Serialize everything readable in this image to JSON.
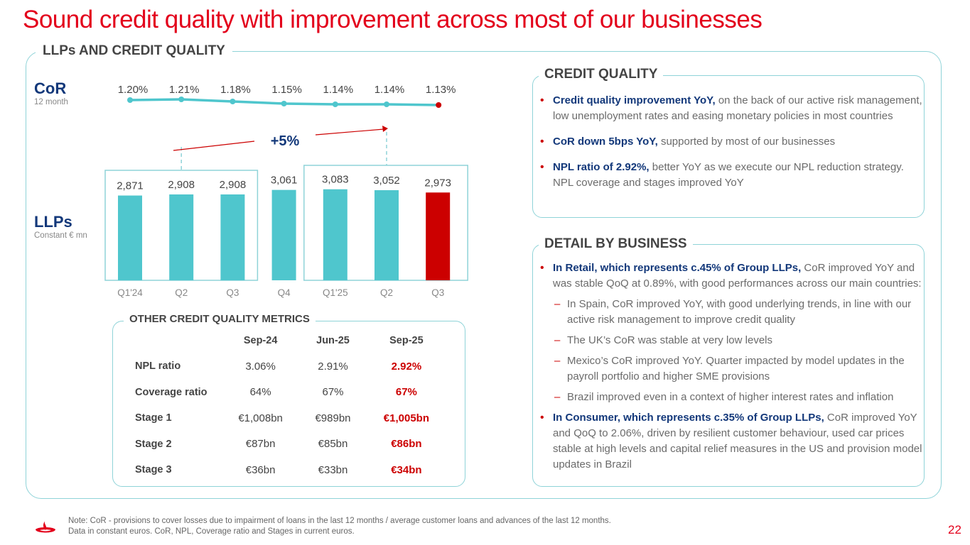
{
  "title": "Sound credit quality with improvement across most of our businesses",
  "main_section": "LLPs AND CREDIT QUALITY",
  "cor": {
    "label": "CoR",
    "sublabel": "12 month"
  },
  "llps": {
    "label": "LLPs",
    "sublabel": "Constant € mn"
  },
  "chart_data": {
    "type": "bar",
    "categories": [
      "Q1'24",
      "Q2",
      "Q3",
      "Q4",
      "Q1'25",
      "Q2",
      "Q3"
    ],
    "series": [
      {
        "name": "LLPs",
        "values": [
          2871,
          2908,
          2908,
          3061,
          3083,
          3052,
          2973
        ],
        "labels": [
          "2,871",
          "2,908",
          "2,908",
          "3,061",
          "3,083",
          "3,052",
          "2,973"
        ]
      },
      {
        "name": "CoR",
        "type": "line",
        "values": [
          1.2,
          1.21,
          1.18,
          1.15,
          1.14,
          1.14,
          1.13
        ],
        "labels": [
          "1.20%",
          "1.21%",
          "1.18%",
          "1.15%",
          "1.14%",
          "1.14%",
          "1.13%"
        ]
      }
    ],
    "annotation": "+5%",
    "ylim": [
      0,
      3100
    ],
    "colors": {
      "bar": "#4fc6cd",
      "highlight": "#cc0000",
      "line": "#4fc6cd",
      "group_box": "#8fd3d8"
    }
  },
  "other_metrics": {
    "title": "OTHER CREDIT QUALITY METRICS",
    "columns": [
      "Sep-24",
      "Jun-25",
      "Sep-25"
    ],
    "rows": [
      {
        "label": "NPL ratio",
        "values": [
          "3.06%",
          "2.91%",
          "2.92%"
        ]
      },
      {
        "label": "Coverage ratio",
        "values": [
          "64%",
          "67%",
          "67%"
        ]
      },
      {
        "label": "Stage 1",
        "values": [
          "€1,008bn",
          "€989bn",
          "€1,005bn"
        ]
      },
      {
        "label": "Stage 2",
        "values": [
          "€87bn",
          "€85bn",
          "€86bn"
        ]
      },
      {
        "label": "Stage 3",
        "values": [
          "€36bn",
          "€33bn",
          "€34bn"
        ]
      }
    ]
  },
  "credit_quality": {
    "title": "CREDIT QUALITY",
    "bullets": [
      {
        "bold": "Credit quality improvement YoY,",
        "text": " on the back of our active risk management, low unemployment rates and easing monetary policies in most countries"
      },
      {
        "bold": "CoR down 5bps YoY,",
        "text": " supported by most of our businesses"
      },
      {
        "bold": "NPL ratio of 2.92%,",
        "text": " better YoY as we execute our NPL reduction strategy. NPL coverage and stages improved YoY"
      }
    ]
  },
  "detail_by_business": {
    "title": "DETAIL BY BUSINESS",
    "retail": {
      "bold": "In Retail, which represents c.45% of Group LLPs,",
      "text": " CoR improved YoY and was stable QoQ at 0.89%, with good performances across our main countries:"
    },
    "sub": [
      "In Spain, CoR improved YoY, with good underlying trends, in line with our active risk management to improve credit quality",
      "The UK’s CoR was stable at very low levels",
      "Mexico’s CoR improved YoY. Quarter impacted by model updates in the payroll portfolio and higher SME provisions",
      "Brazil improved even in a context of higher interest rates and inflation"
    ],
    "consumer": {
      "bold": "In Consumer, which represents c.35% of Group LLPs,",
      "text": " CoR improved YoY and QoQ to 2.06%, driven by resilient customer behaviour, used car prices stable at high levels and capital relief measures in the US and provision model updates in Brazil"
    }
  },
  "note": {
    "line1": "Note: CoR - provisions to cover losses due to impairment of loans in the last 12 months / average customer loans and advances of the last 12 months.",
    "line2": "Data in constant euros. CoR, NPL, Coverage ratio and Stages in current euros."
  },
  "page_number": "22",
  "brand_color": "#e3001b"
}
